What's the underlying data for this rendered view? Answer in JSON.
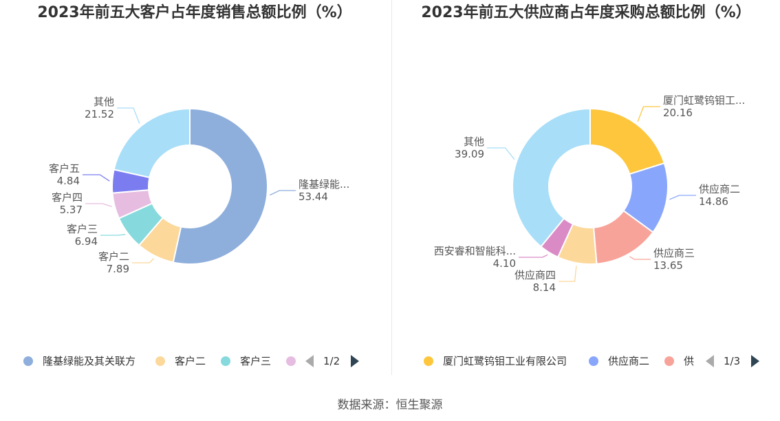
{
  "source": "数据来源：恒生聚源",
  "chart_data": [
    {
      "type": "pie",
      "title": "2023年前五大客户占年度销售总额比例（%）",
      "slices": [
        {
          "label": "隆基绿能...",
          "legend": "隆基绿能及其关联方",
          "value": 53.44,
          "value_text": "53.44",
          "color": "#8eaedc"
        },
        {
          "label": "客户二",
          "legend": "客户二",
          "value": 7.89,
          "value_text": "7.89",
          "color": "#fcd89a"
        },
        {
          "label": "客户三",
          "legend": "客户三",
          "value": 6.94,
          "value_text": "6.94",
          "color": "#86d9dc"
        },
        {
          "label": "客户四",
          "legend": "",
          "value": 5.37,
          "value_text": "5.37",
          "color": "#e6bde0"
        },
        {
          "label": "客户五",
          "legend": "",
          "value": 4.84,
          "value_text": "4.84",
          "color": "#7b7cf0"
        },
        {
          "label": "其他",
          "legend": "",
          "value": 21.52,
          "value_text": "21.52",
          "color": "#a8def8"
        }
      ],
      "legend_position": "bottom",
      "pager": "1/2"
    },
    {
      "type": "pie",
      "title": "2023年前五大供应商占年度采购总额比例（%）",
      "slices": [
        {
          "label": "厦门虹鹭钨钼工...",
          "legend": "厦门虹鹭钨钼工业有限公司",
          "value": 20.16,
          "value_text": "20.16",
          "color": "#fdc63c"
        },
        {
          "label": "供应商二",
          "legend": "供应商二",
          "value": 14.86,
          "value_text": "14.86",
          "color": "#88a6fb"
        },
        {
          "label": "供应商三",
          "legend": "供",
          "value": 13.65,
          "value_text": "13.65",
          "color": "#f8a399"
        },
        {
          "label": "供应商四",
          "legend": "",
          "value": 8.14,
          "value_text": "8.14",
          "color": "#fcd89a"
        },
        {
          "label": "西安睿和智能科...",
          "legend": "",
          "value": 4.1,
          "value_text": "4.10",
          "color": "#da8bc6"
        },
        {
          "label": "其他",
          "legend": "",
          "value": 39.09,
          "value_text": "39.09",
          "color": "#a8def8"
        }
      ],
      "legend_position": "bottom",
      "pager": "1/3"
    }
  ]
}
